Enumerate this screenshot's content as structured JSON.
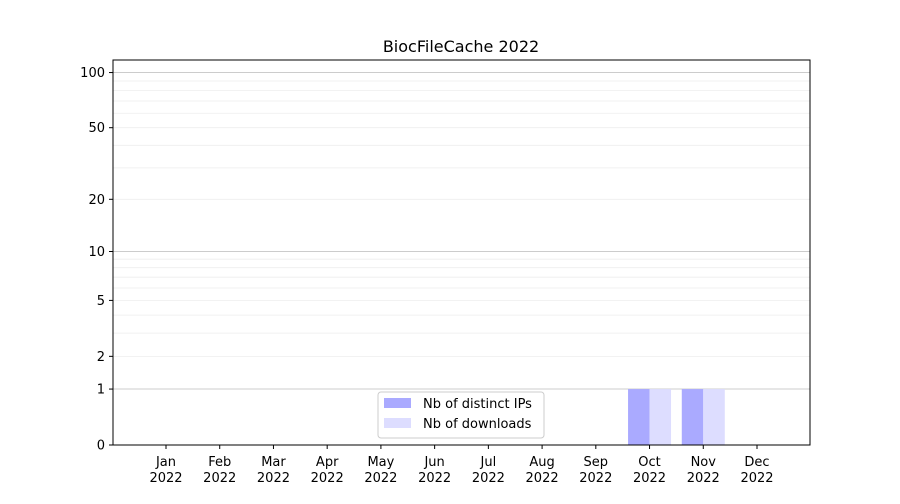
{
  "chart_data": {
    "type": "bar",
    "title": "BiocFileCache 2022",
    "xlabel": "",
    "ylabel": "",
    "yscale": "log(1+y)",
    "ylim": [
      0,
      117
    ],
    "yticks": [
      0,
      1,
      2,
      5,
      10,
      20,
      50,
      100
    ],
    "grid": true,
    "legend_position": "bottom-center",
    "categories": [
      "Jan\n2022",
      "Feb\n2022",
      "Mar\n2022",
      "Apr\n2022",
      "May\n2022",
      "Jun\n2022",
      "Jul\n2022",
      "Aug\n2022",
      "Sep\n2022",
      "Oct\n2022",
      "Nov\n2022",
      "Dec\n2022"
    ],
    "series": [
      {
        "name": "Nb of distinct IPs",
        "color": "#aaaaff",
        "values": [
          0,
          0,
          0,
          0,
          0,
          0,
          0,
          0,
          0,
          1,
          1,
          0
        ]
      },
      {
        "name": "Nb of downloads",
        "color": "#ddddff",
        "values": [
          0,
          0,
          0,
          0,
          0,
          0,
          0,
          0,
          0,
          1,
          1,
          0
        ]
      }
    ]
  }
}
